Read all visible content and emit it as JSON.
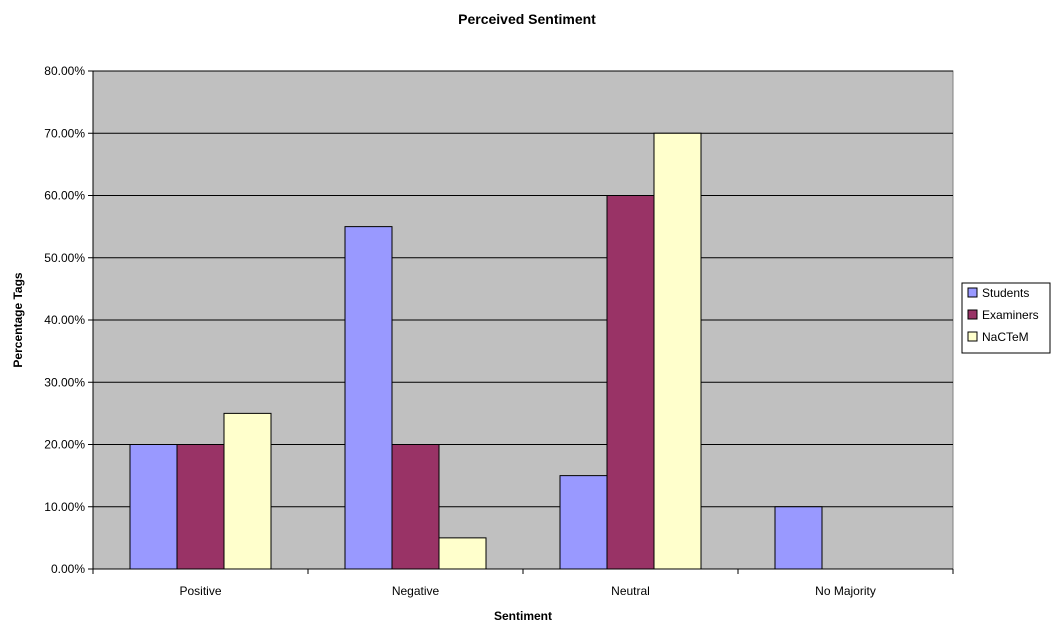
{
  "chart_data": {
    "type": "bar",
    "title": "Perceived Sentiment",
    "xlabel": "Sentiment",
    "ylabel": "Percentage Tags",
    "categories": [
      "Positive",
      "Negative",
      "Neutral",
      "No Majority"
    ],
    "series": [
      {
        "name": "Students",
        "color": "#9999ff",
        "values": [
          0.2,
          0.55,
          0.15,
          0.1
        ]
      },
      {
        "name": "Examiners",
        "color": "#993366",
        "values": [
          0.2,
          0.2,
          0.6,
          0.0
        ]
      },
      {
        "name": "NaCTeM",
        "color": "#ffffcc",
        "values": [
          0.25,
          0.05,
          0.7,
          0.0
        ]
      }
    ],
    "ylim": [
      0,
      0.8
    ],
    "yticks": [
      "0.00%",
      "10.00%",
      "20.00%",
      "30.00%",
      "40.00%",
      "50.00%",
      "60.00%",
      "70.00%",
      "80.00%"
    ],
    "grid": true,
    "plot_background": "#c0c0c0",
    "legend_position": "right"
  }
}
